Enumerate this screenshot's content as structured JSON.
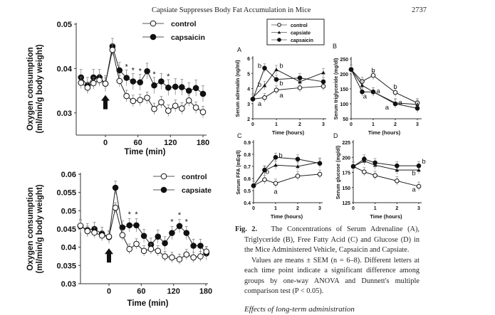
{
  "header": {
    "running_title": "Capsiate Suppresses Body Fat Accumulation in Mice",
    "page_number": "2737"
  },
  "chart_data": [
    {
      "id": "o2-capsaicin",
      "type": "line",
      "xlabel": "Time  (min)",
      "ylabel": [
        "Oxygen consumption",
        "(ml/min/g body weight)"
      ],
      "xticks": [
        0,
        60,
        120,
        180
      ],
      "yticks": [
        "0.03",
        "0.04",
        "0.05"
      ],
      "ylim": [
        0.025,
        0.05
      ],
      "xlim": [
        -50,
        185
      ],
      "x": [
        -45,
        -33,
        -22,
        -11,
        0,
        13,
        26,
        39,
        51,
        64,
        77,
        90,
        103,
        116,
        129,
        141,
        154,
        167,
        180
      ],
      "series": [
        {
          "name": "control",
          "marker": "open-circle",
          "sem": 0.0013,
          "values": [
            0.0368,
            0.0357,
            0.0367,
            0.0374,
            0.0366,
            0.0442,
            0.0372,
            0.0338,
            0.0327,
            0.0329,
            0.0334,
            0.0309,
            0.0324,
            0.0305,
            0.0316,
            0.031,
            0.0328,
            0.0312,
            0.0302
          ]
        },
        {
          "name": "capsaicin",
          "marker": "filled-circle",
          "sem": 0.0018,
          "values": [
            0.038,
            0.0362,
            0.038,
            0.038,
            0.0366,
            0.045,
            0.0396,
            0.0379,
            0.0371,
            0.0369,
            0.0394,
            0.0362,
            0.0371,
            0.0357,
            0.0359,
            0.0358,
            0.035,
            0.0356,
            0.0343
          ]
        }
      ],
      "significance_marker": "*",
      "significant_x": [
        39,
        51,
        64,
        90,
        116
      ],
      "injection_arrow_x": 0,
      "legend": "top-right"
    },
    {
      "id": "o2-capsiate",
      "type": "line",
      "xlabel": "Time  (min)",
      "ylabel": [
        "Oxygen consumption",
        "(ml/min/g body weight)"
      ],
      "xticks": [
        0,
        60,
        120,
        180
      ],
      "yticks": [
        "0.03",
        "0.035",
        "0.04",
        "0.045",
        "0.05",
        "0.055",
        "0.06"
      ],
      "ylim": [
        0.03,
        0.06
      ],
      "xlim": [
        -53,
        185
      ],
      "x": [
        -53,
        -40,
        -27,
        -13,
        0,
        12,
        25,
        38,
        51,
        65,
        78,
        91,
        104,
        117,
        131,
        144,
        157,
        170,
        181
      ],
      "series": [
        {
          "name": "control",
          "marker": "open-circle",
          "sem": 0.0014,
          "values": [
            0.0459,
            0.0444,
            0.044,
            0.0432,
            0.0429,
            0.0508,
            0.0433,
            0.0395,
            0.0409,
            0.039,
            0.0395,
            0.039,
            0.0375,
            0.0372,
            0.0367,
            0.038,
            0.0372,
            0.0375,
            0.0388
          ]
        },
        {
          "name": "capsiate",
          "marker": "filled-circle",
          "sem": 0.0018,
          "values": [
            0.0458,
            0.0447,
            0.045,
            0.0437,
            0.0428,
            0.0563,
            0.0454,
            0.046,
            0.046,
            0.0431,
            0.0407,
            0.0429,
            0.0411,
            0.0439,
            0.0458,
            0.0439,
            0.0404,
            0.0404,
            0.0383
          ]
        }
      ],
      "significance_marker": "*",
      "significant_x": [
        38,
        51,
        117,
        131,
        144
      ],
      "injection_arrow_x": 0,
      "legend": "top-right"
    },
    {
      "id": "A",
      "panel_label": "A",
      "type": "line",
      "xlabel": "Time (hours)",
      "ylabel": "Serum adrenalin (ng/ml)",
      "x": [
        0,
        0.5,
        1,
        2,
        3
      ],
      "xticks": [
        "0",
        "1",
        "2",
        "3"
      ],
      "yticks": [
        "2",
        "3",
        "4",
        "5",
        "6"
      ],
      "ylim": [
        2,
        6
      ],
      "series": [
        {
          "name": "control",
          "marker": "open-circle",
          "values": [
            3.3,
            3.4,
            3.9,
            4.05,
            4.15
          ]
        },
        {
          "name": "capsiate",
          "marker": "triangle",
          "values": [
            3.4,
            4.2,
            5.25,
            4.45,
            5.05
          ]
        },
        {
          "name": "capsaicin",
          "marker": "filled-circle",
          "values": [
            3.3,
            5.35,
            4.6,
            4.7,
            4.45
          ]
        }
      ],
      "letters": [
        {
          "x": 0.5,
          "y": 5.5,
          "t": "b",
          "side": "left"
        },
        {
          "x": 0.5,
          "y": 4.25,
          "t": "b",
          "side": "left"
        },
        {
          "x": 0.5,
          "y": 3.0,
          "t": "a",
          "side": "left"
        },
        {
          "x": 1,
          "y": 5.5,
          "t": "b",
          "side": "right"
        },
        {
          "x": 1,
          "y": 4.35,
          "t": "b",
          "side": "right"
        },
        {
          "x": 1,
          "y": 3.55,
          "t": "a",
          "side": "right"
        }
      ]
    },
    {
      "id": "B",
      "panel_label": "B",
      "type": "line",
      "xlabel": "Time (hours)",
      "ylabel": "Serum triglyceride (mg/dl)",
      "x": [
        0,
        0.5,
        1,
        2,
        3
      ],
      "xticks": [
        "0",
        "1",
        "2",
        "3"
      ],
      "yticks": [
        "50",
        "100",
        "150",
        "200",
        "250"
      ],
      "ylim": [
        50,
        250
      ],
      "series": [
        {
          "name": "control",
          "marker": "open-circle",
          "values": [
            215,
            175,
            195,
            138,
            103
          ]
        },
        {
          "name": "capsiate",
          "marker": "triangle",
          "values": [
            215,
            162,
            140,
            103,
            98
          ]
        },
        {
          "name": "capsaicin",
          "marker": "filled-circle",
          "values": [
            215,
            140,
            140,
            100,
            85
          ]
        }
      ],
      "letters": [
        {
          "x": 1,
          "y": 212,
          "t": "b",
          "side": "center"
        },
        {
          "x": 1,
          "y": 143,
          "t": "a",
          "side": "right"
        },
        {
          "x": 0.85,
          "y": 125,
          "t": "a",
          "side": "left"
        },
        {
          "x": 2,
          "y": 157,
          "t": "b",
          "side": "center"
        },
        {
          "x": 2,
          "y": 105,
          "t": "a",
          "side": "right"
        },
        {
          "x": 1.85,
          "y": 88,
          "t": "a",
          "side": "left"
        }
      ]
    },
    {
      "id": "C",
      "panel_label": "C",
      "type": "line",
      "xlabel": "Time (hours)",
      "ylabel": "Serum FFA (mEq/l)",
      "x": [
        0,
        0.5,
        1,
        2,
        3
      ],
      "xticks": [
        "0",
        "1",
        "2",
        "3"
      ],
      "yticks": [
        "0.4",
        "0.5",
        "0.6",
        "0.7",
        "0.8",
        "0.9"
      ],
      "ylim": [
        0.4,
        0.9
      ],
      "series": [
        {
          "name": "control",
          "marker": "open-circle",
          "values": [
            0.54,
            0.59,
            0.56,
            0.62,
            0.635
          ]
        },
        {
          "name": "capsiate",
          "marker": "triangle",
          "values": [
            0.54,
            0.665,
            0.71,
            0.7,
            0.735
          ]
        },
        {
          "name": "capsaicin",
          "marker": "filled-circle",
          "values": [
            0.54,
            0.67,
            0.775,
            0.76,
            0.725
          ]
        }
      ],
      "letters": [
        {
          "x": 1,
          "y": 0.79,
          "t": "b",
          "side": "right"
        },
        {
          "x": 0.85,
          "y": 0.655,
          "t": "b",
          "side": "left"
        },
        {
          "x": 1,
          "y": 0.49,
          "t": "a",
          "side": "center"
        }
      ]
    },
    {
      "id": "D",
      "panel_label": "D",
      "type": "line",
      "xlabel": "Time (hours)",
      "ylabel": "Serum glucose (mg/dl)",
      "x": [
        0,
        0.5,
        1,
        2,
        3
      ],
      "xticks": [
        "0",
        "1",
        "2",
        "3"
      ],
      "yticks": [
        "125",
        "150",
        "175",
        "200",
        "225"
      ],
      "ylim": [
        125,
        225
      ],
      "series": [
        {
          "name": "control",
          "marker": "open-circle",
          "values": [
            185,
            176,
            170,
            161,
            152
          ]
        },
        {
          "name": "capsiate",
          "marker": "triangle",
          "values": [
            185,
            194,
            187,
            179,
            179
          ]
        },
        {
          "name": "capsaicin",
          "marker": "filled-circle",
          "values": [
            185,
            197,
            191,
            186,
            186
          ]
        }
      ],
      "letters": [
        {
          "x": 3,
          "y": 193,
          "t": "b",
          "side": "right"
        },
        {
          "x": 3,
          "y": 174,
          "t": "b",
          "side": "left"
        },
        {
          "x": 3,
          "y": 147,
          "t": "a",
          "side": "left"
        }
      ]
    }
  ],
  "fig2_legend": [
    "control",
    "capsiate",
    "capsaicin"
  ],
  "caption": {
    "label": "Fig. 2.",
    "title": "The Concentrations of Serum Adrenaline (A), Triglyceride (B), Free Fatty Acid (C) and Glucose (D) in the Mice Administered Vehicle, Capsaicin and Capsiate.",
    "body": "Values are means ± SEM (n = 6–8). Different letters at each time point indicate a significant difference among groups by one-way ANOVA and Dunnett's multiple comparison test (P < 0.05)."
  },
  "next_section_heading": "Effects of long-term administration"
}
